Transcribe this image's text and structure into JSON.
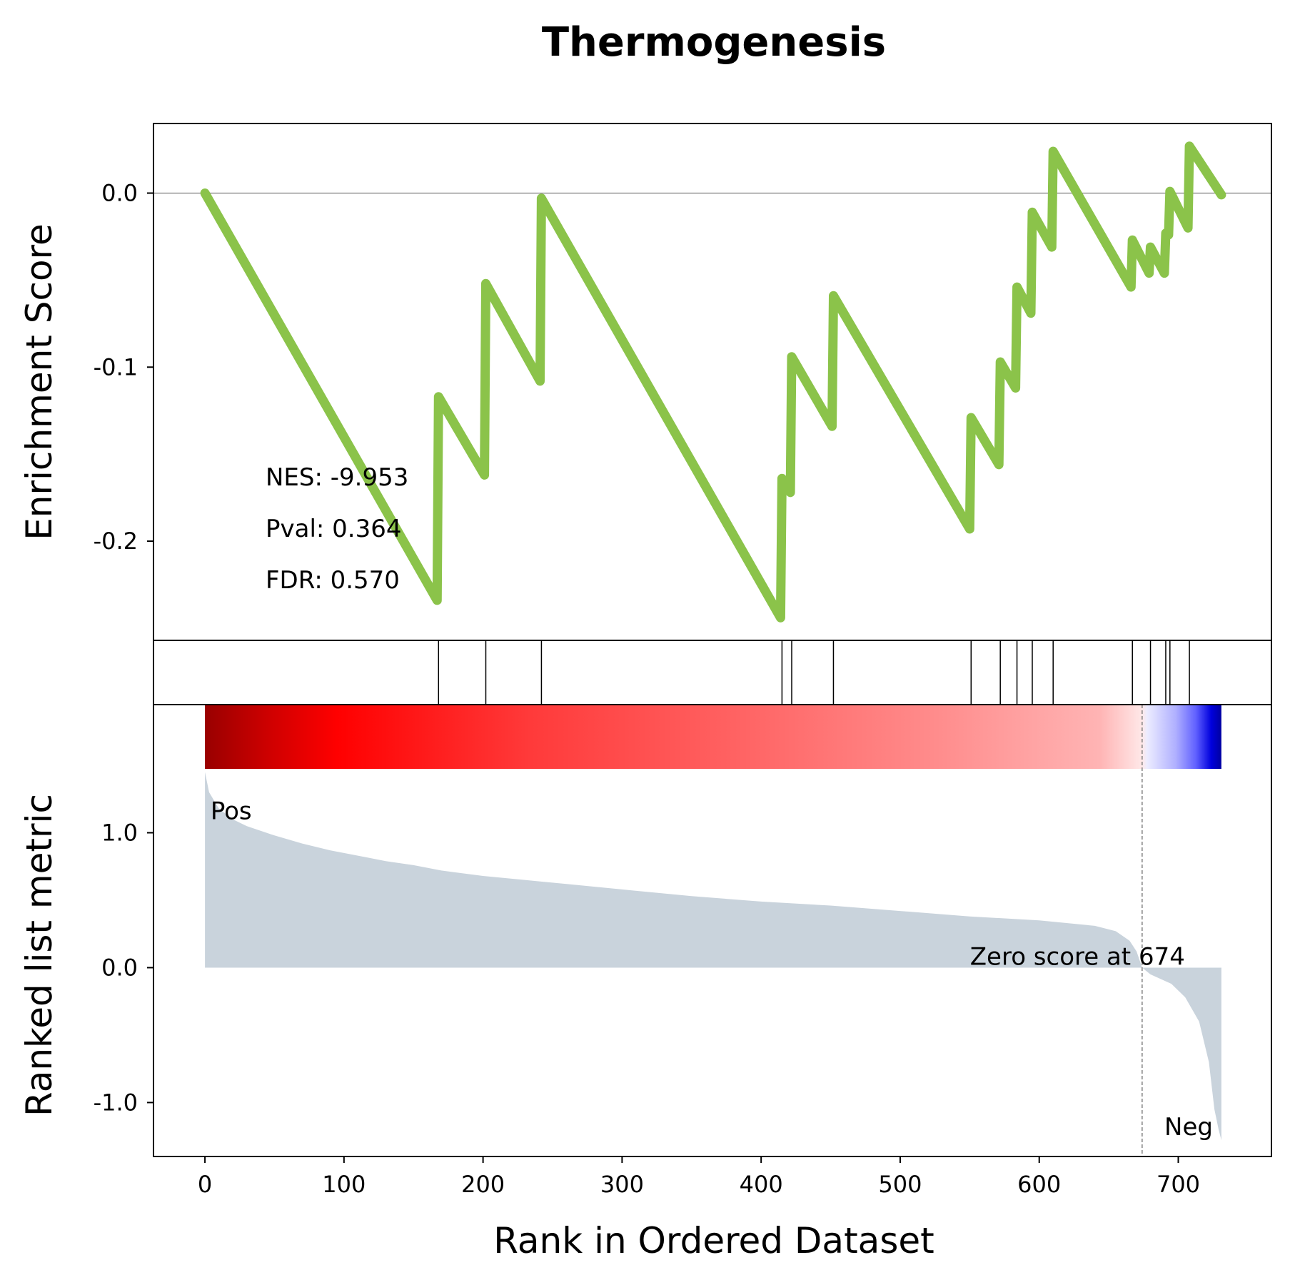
{
  "chart_data": {
    "type": "line",
    "title": "Thermogenesis",
    "xlabel": "Rank in Ordered Dataset",
    "xlim": [
      -37,
      767
    ],
    "xticks": [
      0,
      100,
      200,
      300,
      400,
      500,
      600,
      700
    ],
    "colors": {
      "es_line": "#8bc34a",
      "metric_fill": "#c9d3dc",
      "pos": "#ff0000",
      "neg": "#0000ff",
      "zero_line": "#808080"
    },
    "enrichment": {
      "ylabel": "Enrichment Score",
      "ylim": [
        -0.257,
        0.04
      ],
      "yticks": [
        0.0,
        -0.1,
        -0.2
      ],
      "ytick_labels": [
        "0.0",
        "-0.1",
        "-0.2"
      ],
      "stats": {
        "nes": "NES: -9.953",
        "pval": "Pval: 0.364",
        "fdr": "FDR: 0.570"
      },
      "points": [
        [
          0,
          0.0
        ],
        [
          167,
          -0.234
        ],
        [
          168,
          -0.117
        ],
        [
          201,
          -0.162
        ],
        [
          202,
          -0.052
        ],
        [
          241,
          -0.108
        ],
        [
          242,
          -0.003
        ],
        [
          414,
          -0.244
        ],
        [
          415,
          -0.164
        ],
        [
          421,
          -0.172
        ],
        [
          422,
          -0.094
        ],
        [
          451,
          -0.134
        ],
        [
          452,
          -0.059
        ],
        [
          550,
          -0.193
        ],
        [
          551,
          -0.129
        ],
        [
          571,
          -0.156
        ],
        [
          572,
          -0.097
        ],
        [
          583,
          -0.112
        ],
        [
          584,
          -0.054
        ],
        [
          594,
          -0.069
        ],
        [
          595,
          -0.011
        ],
        [
          609,
          -0.031
        ],
        [
          610,
          0.024
        ],
        [
          666,
          -0.054
        ],
        [
          667,
          -0.027
        ],
        [
          679,
          -0.046
        ],
        [
          680,
          -0.031
        ],
        [
          690,
          -0.046
        ],
        [
          691,
          -0.023
        ],
        [
          693,
          -0.024
        ],
        [
          694,
          0.001
        ],
        [
          707,
          -0.02
        ],
        [
          708,
          0.027
        ],
        [
          731,
          -0.001
        ]
      ]
    },
    "hits": [
      168,
      202,
      242,
      415,
      422,
      452,
      551,
      572,
      584,
      595,
      610,
      667,
      680,
      691,
      694,
      708
    ],
    "metric": {
      "ylabel": "Ranked list metric",
      "ylim": [
        -1.4,
        1.95
      ],
      "yticks": [
        1.0,
        0.0,
        -1.0
      ],
      "ytick_labels": [
        "1.0",
        "0.0",
        "-1.0"
      ],
      "pos_label": "Pos",
      "neg_label": "Neg",
      "zero_score": 674,
      "zero_label": "Zero score at 674",
      "n": 731,
      "points": [
        [
          0,
          1.45
        ],
        [
          3,
          1.3
        ],
        [
          10,
          1.18
        ],
        [
          20,
          1.1
        ],
        [
          30,
          1.05
        ],
        [
          50,
          0.98
        ],
        [
          70,
          0.92
        ],
        [
          90,
          0.87
        ],
        [
          110,
          0.83
        ],
        [
          130,
          0.79
        ],
        [
          150,
          0.76
        ],
        [
          170,
          0.72
        ],
        [
          200,
          0.68
        ],
        [
          230,
          0.65
        ],
        [
          260,
          0.62
        ],
        [
          300,
          0.58
        ],
        [
          350,
          0.53
        ],
        [
          400,
          0.49
        ],
        [
          450,
          0.46
        ],
        [
          500,
          0.42
        ],
        [
          550,
          0.38
        ],
        [
          600,
          0.35
        ],
        [
          640,
          0.31
        ],
        [
          655,
          0.27
        ],
        [
          665,
          0.2
        ],
        [
          670,
          0.12
        ],
        [
          674,
          0.0
        ],
        [
          680,
          -0.05
        ],
        [
          695,
          -0.12
        ],
        [
          705,
          -0.22
        ],
        [
          715,
          -0.4
        ],
        [
          722,
          -0.7
        ],
        [
          726,
          -1.05
        ],
        [
          729,
          -1.2
        ],
        [
          731,
          -1.28
        ]
      ]
    }
  }
}
